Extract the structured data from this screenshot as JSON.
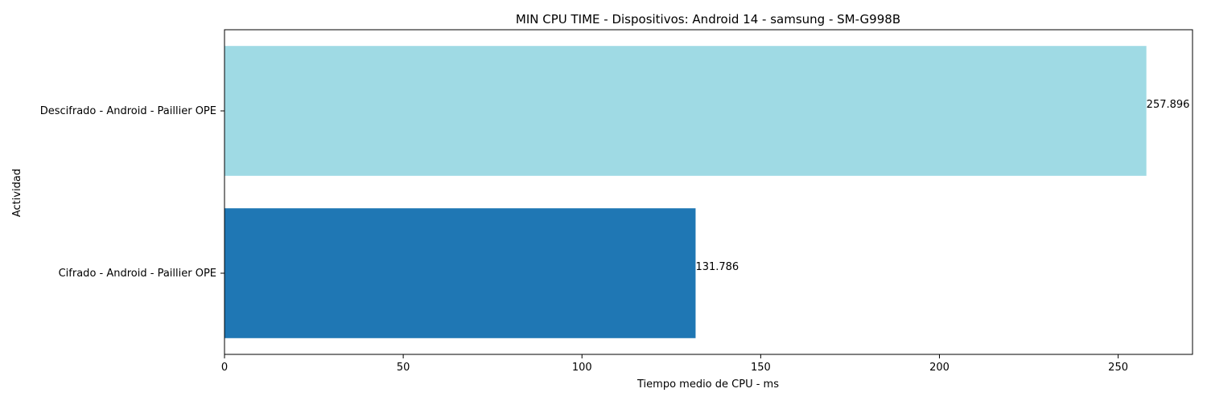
{
  "chart_data": {
    "type": "bar",
    "orientation": "horizontal",
    "title": "MIN CPU TIME - Dispositivos: Android 14 - samsung - SM-G998B",
    "xlabel": "Tiempo medio de CPU - ms",
    "ylabel": "Actividad",
    "categories": [
      "Cifrado - Android - Paillier OPE",
      "Descifrado - Android - Paillier OPE"
    ],
    "values": [
      131.786,
      257.896
    ],
    "value_labels": [
      "131.786",
      "257.896"
    ],
    "bar_colors": [
      "#1f77b4",
      "#9fdae4"
    ],
    "xlim": [
      0,
      270.8
    ],
    "xticks": [
      0,
      50,
      100,
      150,
      200,
      250
    ],
    "xtick_labels": [
      "0",
      "50",
      "100",
      "150",
      "200",
      "250"
    ],
    "grid": false,
    "legend": "none"
  }
}
